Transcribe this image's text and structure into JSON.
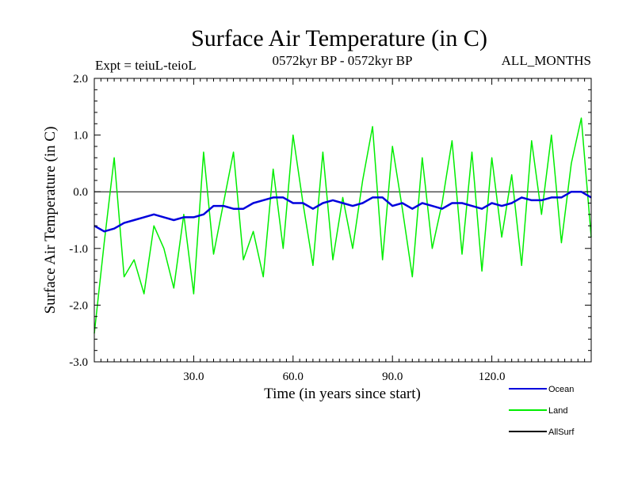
{
  "chart_data": {
    "type": "line",
    "title": "Surface Air Temperature (in C)",
    "subtitle_left": "Expt = teiuL-teioL",
    "subtitle_center": "0572kyr BP - 0572kyr BP",
    "subtitle_right": "ALL_MONTHS",
    "xlabel": "Time (in years since start)",
    "ylabel": "Surface Air Temperature (in C)",
    "xlim": [
      0,
      150
    ],
    "ylim": [
      -3.0,
      2.0
    ],
    "xticks": [
      30,
      60,
      90,
      120
    ],
    "xtick_labels": [
      "30.0",
      "60.0",
      "90.0",
      "120.0"
    ],
    "yticks": [
      2.0,
      1.0,
      0.0,
      -1.0,
      -2.0,
      -3.0
    ],
    "ytick_labels": [
      "2.0",
      "1.0",
      "0.0",
      "-1.0",
      "-2.0",
      "-3.0"
    ],
    "zero_line": true,
    "series": [
      {
        "name": "Land",
        "color": "#00ee00",
        "x": [
          0,
          3,
          6,
          9,
          12,
          15,
          18,
          21,
          24,
          27,
          30,
          33,
          36,
          39,
          42,
          45,
          48,
          51,
          54,
          57,
          60,
          63,
          66,
          69,
          72,
          75,
          78,
          81,
          84,
          87,
          90,
          93,
          96,
          99,
          102,
          105,
          108,
          111,
          114,
          117,
          120,
          123,
          126,
          129,
          132,
          135,
          138,
          141,
          144,
          147,
          150
        ],
        "values": [
          -2.5,
          -0.9,
          0.6,
          -1.5,
          -1.2,
          -1.8,
          -0.6,
          -1.0,
          -1.7,
          -0.4,
          -1.8,
          0.7,
          -1.1,
          -0.2,
          0.7,
          -1.2,
          -0.7,
          -1.5,
          0.4,
          -1.0,
          1.0,
          -0.2,
          -1.3,
          0.7,
          -1.2,
          -0.1,
          -1.0,
          0.2,
          1.15,
          -1.2,
          0.8,
          -0.3,
          -1.5,
          0.6,
          -1.0,
          -0.2,
          0.9,
          -1.1,
          0.7,
          -1.4,
          0.6,
          -0.8,
          0.3,
          -1.3,
          0.9,
          -0.4,
          1.0,
          -0.9,
          0.5,
          1.3,
          -0.8
        ],
        "stats": {
          "min": -2.5,
          "max": 1.3,
          "typical_range": [
            -1.0,
            0.6
          ]
        }
      },
      {
        "name": "Ocean",
        "color": "#0000dd",
        "x": [
          0,
          3,
          6,
          9,
          12,
          15,
          18,
          21,
          24,
          27,
          30,
          33,
          36,
          39,
          42,
          45,
          48,
          51,
          54,
          57,
          60,
          63,
          66,
          69,
          72,
          75,
          78,
          81,
          84,
          87,
          90,
          93,
          96,
          99,
          102,
          105,
          108,
          111,
          114,
          117,
          120,
          123,
          126,
          129,
          132,
          135,
          138,
          141,
          144,
          147,
          150
        ],
        "values": [
          -0.6,
          -0.7,
          -0.65,
          -0.55,
          -0.5,
          -0.45,
          -0.4,
          -0.45,
          -0.5,
          -0.45,
          -0.45,
          -0.4,
          -0.25,
          -0.25,
          -0.3,
          -0.3,
          -0.2,
          -0.15,
          -0.1,
          -0.1,
          -0.2,
          -0.2,
          -0.3,
          -0.2,
          -0.15,
          -0.2,
          -0.25,
          -0.2,
          -0.1,
          -0.1,
          -0.25,
          -0.2,
          -0.3,
          -0.2,
          -0.25,
          -0.3,
          -0.2,
          -0.2,
          -0.25,
          -0.3,
          -0.2,
          -0.25,
          -0.2,
          -0.1,
          -0.15,
          -0.15,
          -0.1,
          -0.1,
          0.0,
          0.0,
          -0.1
        ]
      },
      {
        "name": "AllSurf",
        "color": "#000000",
        "x": [],
        "values": []
      }
    ],
    "legend": {
      "placement": "bottom-right",
      "entries": [
        "Ocean",
        "Land",
        "AllSurf"
      ]
    }
  }
}
